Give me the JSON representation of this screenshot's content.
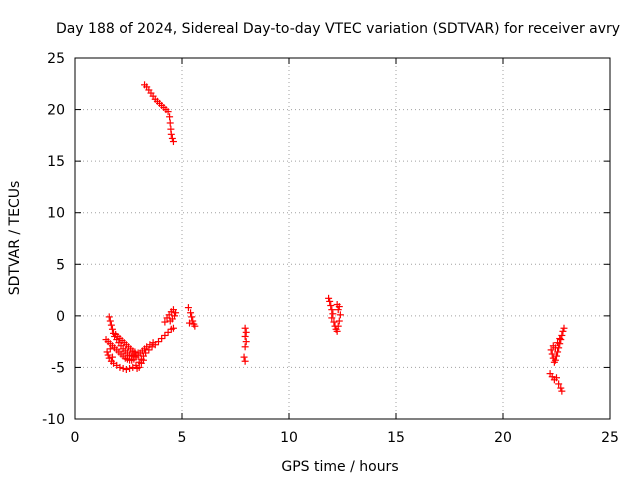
{
  "chart_data": {
    "type": "scatter",
    "title": "Day 188 of 2024, Sidereal Day-to-day VTEC variation (SDTVAR) for receiver avry",
    "xlabel": "GPS time / hours",
    "ylabel": "SDTVAR / TECUs",
    "xlim": [
      0,
      25
    ],
    "ylim": [
      -10,
      25
    ],
    "xticks": [
      0,
      5,
      10,
      15,
      20,
      25
    ],
    "yticks": [
      -10,
      -5,
      0,
      5,
      10,
      15,
      20,
      25
    ],
    "grid": true,
    "marker": "plus",
    "color": "#ff0000",
    "series": [
      {
        "name": "SDTVAR",
        "points": [
          [
            3.25,
            22.4
          ],
          [
            3.35,
            22.2
          ],
          [
            3.45,
            21.9
          ],
          [
            3.55,
            21.6
          ],
          [
            3.65,
            21.3
          ],
          [
            3.75,
            21.0
          ],
          [
            3.85,
            20.8
          ],
          [
            3.95,
            20.6
          ],
          [
            4.05,
            20.4
          ],
          [
            4.15,
            20.2
          ],
          [
            4.25,
            20.0
          ],
          [
            4.35,
            19.8
          ],
          [
            4.42,
            19.3
          ],
          [
            4.45,
            18.7
          ],
          [
            4.48,
            18.1
          ],
          [
            4.5,
            17.6
          ],
          [
            4.55,
            17.2
          ],
          [
            4.6,
            16.9
          ],
          [
            1.5,
            -3.5
          ],
          [
            1.55,
            -3.8
          ],
          [
            1.6,
            -4.1
          ],
          [
            1.7,
            -4.4
          ],
          [
            1.8,
            -4.6
          ],
          [
            1.95,
            -4.8
          ],
          [
            2.1,
            -5.0
          ],
          [
            2.25,
            -5.1
          ],
          [
            2.4,
            -5.2
          ],
          [
            2.55,
            -5.1
          ],
          [
            2.7,
            -5.0
          ],
          [
            2.85,
            -4.8
          ],
          [
            3.0,
            -4.5
          ],
          [
            3.1,
            -4.2
          ],
          [
            3.2,
            -3.9
          ],
          [
            3.3,
            -3.6
          ],
          [
            3.45,
            -3.3
          ],
          [
            3.6,
            -3.0
          ],
          [
            3.75,
            -2.8
          ],
          [
            3.9,
            -2.5
          ],
          [
            4.05,
            -2.2
          ],
          [
            4.2,
            -1.9
          ],
          [
            4.35,
            -1.6
          ],
          [
            4.5,
            -1.3
          ],
          [
            4.6,
            -1.2
          ],
          [
            1.45,
            -2.3
          ],
          [
            1.55,
            -2.5
          ],
          [
            1.65,
            -2.7
          ],
          [
            1.75,
            -2.9
          ],
          [
            1.85,
            -3.1
          ],
          [
            1.95,
            -3.3
          ],
          [
            2.05,
            -3.5
          ],
          [
            2.15,
            -3.7
          ],
          [
            2.25,
            -3.9
          ],
          [
            2.35,
            -4.1
          ],
          [
            2.45,
            -4.2
          ],
          [
            2.55,
            -4.3
          ],
          [
            2.65,
            -4.3
          ],
          [
            2.75,
            -4.2
          ],
          [
            2.85,
            -4.0
          ],
          [
            2.95,
            -3.8
          ],
          [
            3.05,
            -3.6
          ],
          [
            3.15,
            -3.4
          ],
          [
            3.25,
            -3.2
          ],
          [
            3.35,
            -3.0
          ],
          [
            3.5,
            -2.8
          ],
          [
            3.65,
            -2.6
          ],
          [
            1.6,
            -0.1
          ],
          [
            1.65,
            -0.5
          ],
          [
            1.7,
            -0.9
          ],
          [
            1.75,
            -1.3
          ],
          [
            1.8,
            -1.7
          ],
          [
            1.85,
            -2.0
          ],
          [
            1.95,
            -2.3
          ],
          [
            2.05,
            -2.6
          ],
          [
            2.15,
            -2.9
          ],
          [
            2.25,
            -3.2
          ],
          [
            2.35,
            -3.4
          ],
          [
            2.45,
            -3.6
          ],
          [
            2.55,
            -3.8
          ],
          [
            2.65,
            -3.9
          ],
          [
            2.75,
            -3.9
          ],
          [
            2.85,
            -3.8
          ],
          [
            2.95,
            -3.6
          ],
          [
            1.9,
            -1.8
          ],
          [
            2.0,
            -2.0
          ],
          [
            2.1,
            -2.2
          ],
          [
            2.2,
            -2.4
          ],
          [
            2.3,
            -2.6
          ],
          [
            2.4,
            -2.8
          ],
          [
            2.5,
            -3.0
          ],
          [
            2.6,
            -3.2
          ],
          [
            2.7,
            -3.4
          ],
          [
            2.8,
            -3.5
          ],
          [
            3.0,
            -5.0
          ],
          [
            2.9,
            -5.1
          ],
          [
            3.1,
            -4.6
          ],
          [
            3.2,
            -4.3
          ],
          [
            1.75,
            -4.0
          ],
          [
            1.65,
            -3.2
          ],
          [
            4.2,
            -0.6
          ],
          [
            4.3,
            -0.2
          ],
          [
            4.4,
            0.1
          ],
          [
            4.5,
            0.4
          ],
          [
            4.6,
            0.6
          ],
          [
            4.7,
            0.3
          ],
          [
            4.65,
            0.0
          ],
          [
            4.55,
            -0.3
          ],
          [
            4.45,
            -0.5
          ],
          [
            5.3,
            0.8
          ],
          [
            5.4,
            0.3
          ],
          [
            5.45,
            -0.1
          ],
          [
            5.5,
            -0.5
          ],
          [
            5.55,
            -0.8
          ],
          [
            5.6,
            -1.0
          ],
          [
            5.35,
            -0.7
          ],
          [
            7.95,
            -1.2
          ],
          [
            8.0,
            -1.6
          ],
          [
            7.95,
            -2.0
          ],
          [
            8.0,
            -2.5
          ],
          [
            7.95,
            -3.0
          ],
          [
            7.9,
            -4.0
          ],
          [
            7.95,
            -4.4
          ],
          [
            11.85,
            1.7
          ],
          [
            11.9,
            1.4
          ],
          [
            11.95,
            1.0
          ],
          [
            12.0,
            0.6
          ],
          [
            12.05,
            0.2
          ],
          [
            12.0,
            -0.2
          ],
          [
            12.1,
            -0.6
          ],
          [
            12.15,
            -1.0
          ],
          [
            12.2,
            -1.3
          ],
          [
            12.25,
            -1.5
          ],
          [
            12.3,
            -1.0
          ],
          [
            12.35,
            -0.5
          ],
          [
            12.4,
            0.1
          ],
          [
            12.3,
            0.6
          ],
          [
            12.25,
            1.1
          ],
          [
            12.35,
            0.9
          ],
          [
            22.25,
            -3.3
          ],
          [
            22.3,
            -3.7
          ],
          [
            22.35,
            -4.1
          ],
          [
            22.4,
            -4.5
          ],
          [
            22.45,
            -4.3
          ],
          [
            22.5,
            -3.9
          ],
          [
            22.55,
            -3.5
          ],
          [
            22.6,
            -3.1
          ],
          [
            22.65,
            -2.7
          ],
          [
            22.7,
            -2.3
          ],
          [
            22.75,
            -1.9
          ],
          [
            22.8,
            -1.5
          ],
          [
            22.85,
            -1.2
          ],
          [
            22.35,
            -2.9
          ],
          [
            22.45,
            -3.1
          ],
          [
            22.55,
            -2.6
          ],
          [
            22.65,
            -2.2
          ],
          [
            22.2,
            -5.6
          ],
          [
            22.3,
            -5.9
          ],
          [
            22.4,
            -6.2
          ],
          [
            22.5,
            -6.0
          ],
          [
            22.6,
            -6.6
          ],
          [
            22.7,
            -7.0
          ],
          [
            22.75,
            -7.3
          ]
        ]
      }
    ]
  }
}
